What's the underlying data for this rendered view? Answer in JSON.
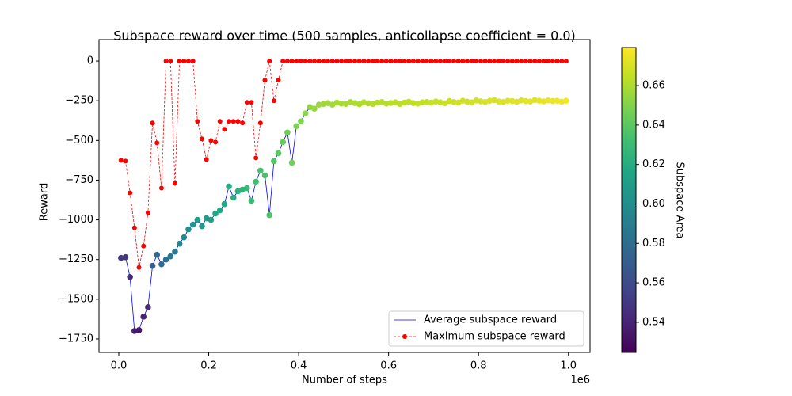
{
  "chart_data": {
    "type": "line",
    "title": "Subspace reward over time (500 samples, anticollapse coefficient = 0.0)",
    "x_label": "Number of steps",
    "x_offset_label": "1e6",
    "y_label": "Reward",
    "xlim": [
      -44000,
      1048000
    ],
    "xticks": [
      {
        "value": 0,
        "label": "0.0"
      },
      {
        "value": 200000,
        "label": "0.2"
      },
      {
        "value": 400000,
        "label": "0.4"
      },
      {
        "value": 600000,
        "label": "0.6"
      },
      {
        "value": 800000,
        "label": "0.8"
      },
      {
        "value": 1000000,
        "label": "1.0"
      }
    ],
    "ylim": [
      -1835,
      135
    ],
    "yticks": [
      0,
      {
        "value": -250,
        "label": "−250"
      },
      {
        "value": -500,
        "label": "−500"
      },
      {
        "value": -750,
        "label": "−750"
      },
      {
        "value": -1000,
        "label": "−1000"
      },
      {
        "value": -1250,
        "label": "−1250"
      },
      {
        "value": -1500,
        "label": "−1500"
      },
      {
        "value": -1750,
        "label": "−1750"
      }
    ],
    "legend": "lower right",
    "x": [
      5000,
      15000,
      25000,
      35000,
      45000,
      55000,
      65000,
      75000,
      85000,
      95000,
      105000,
      115000,
      125000,
      135000,
      145000,
      155000,
      165000,
      175000,
      185000,
      195000,
      205000,
      215000,
      225000,
      235000,
      245000,
      255000,
      265000,
      275000,
      285000,
      295000,
      305000,
      315000,
      325000,
      335000,
      345000,
      355000,
      365000,
      375000,
      385000,
      395000,
      405000,
      415000,
      425000,
      435000,
      445000,
      455000,
      465000,
      475000,
      485000,
      495000,
      505000,
      515000,
      525000,
      535000,
      545000,
      555000,
      565000,
      575000,
      585000,
      595000,
      605000,
      615000,
      625000,
      635000,
      645000,
      655000,
      665000,
      675000,
      685000,
      695000,
      705000,
      715000,
      725000,
      735000,
      745000,
      755000,
      765000,
      775000,
      785000,
      795000,
      805000,
      815000,
      825000,
      835000,
      845000,
      855000,
      865000,
      875000,
      885000,
      895000,
      905000,
      915000,
      925000,
      935000,
      945000,
      955000,
      965000,
      975000,
      985000,
      995000
    ],
    "series": [
      {
        "name": "Average subspace reward",
        "color": "#0000ff",
        "values": [
          -1240,
          -1235,
          -1360,
          -1700,
          -1695,
          -1610,
          -1550,
          -1290,
          -1220,
          -1280,
          -1250,
          -1230,
          -1200,
          -1150,
          -1110,
          -1060,
          -1030,
          -1000,
          -1040,
          -990,
          -1000,
          -960,
          -940,
          -900,
          -790,
          -860,
          -820,
          -810,
          -800,
          -880,
          -760,
          -690,
          -720,
          -970,
          -630,
          -580,
          -510,
          -450,
          -640,
          -410,
          -380,
          -330,
          -290,
          -300,
          -275,
          -270,
          -265,
          -275,
          -262,
          -268,
          -270,
          -258,
          -265,
          -272,
          -260,
          -266,
          -270,
          -262,
          -258,
          -268,
          -264,
          -260,
          -270,
          -262,
          -256,
          -265,
          -268,
          -260,
          -258,
          -262,
          -255,
          -260,
          -266,
          -252,
          -258,
          -262,
          -250,
          -256,
          -260,
          -248,
          -254,
          -258,
          -250,
          -246,
          -255,
          -258,
          -250,
          -252,
          -256,
          -248,
          -252,
          -255,
          -246,
          -250,
          -254,
          -248,
          -252,
          -250,
          -256,
          -250
        ],
        "area": [
          0.55,
          0.55,
          0.545,
          0.537,
          0.535,
          0.54,
          0.545,
          0.57,
          0.578,
          0.58,
          0.582,
          0.585,
          0.59,
          0.595,
          0.598,
          0.6,
          0.605,
          0.61,
          0.607,
          0.61,
          0.612,
          0.615,
          0.615,
          0.618,
          0.62,
          0.62,
          0.622,
          0.625,
          0.627,
          0.628,
          0.632,
          0.634,
          0.635,
          0.636,
          0.638,
          0.64,
          0.642,
          0.645,
          0.646,
          0.648,
          0.65,
          0.652,
          0.654,
          0.655,
          0.656,
          0.657,
          0.657,
          0.658,
          0.658,
          0.659,
          0.659,
          0.66,
          0.66,
          0.66,
          0.661,
          0.661,
          0.661,
          0.662,
          0.662,
          0.662,
          0.663,
          0.663,
          0.663,
          0.664,
          0.664,
          0.664,
          0.665,
          0.665,
          0.665,
          0.666,
          0.666,
          0.666,
          0.667,
          0.667,
          0.667,
          0.668,
          0.668,
          0.668,
          0.669,
          0.669,
          0.669,
          0.67,
          0.67,
          0.67,
          0.671,
          0.671,
          0.671,
          0.672,
          0.672,
          0.672,
          0.673,
          0.673,
          0.673,
          0.674,
          0.674,
          0.675,
          0.675,
          0.676,
          0.676,
          0.677
        ]
      },
      {
        "name": "Maximum subspace reward",
        "color": "#ff0000",
        "linestyle": "dashed",
        "marker": true,
        "values": [
          -625,
          -630,
          -830,
          -1050,
          -1300,
          -1165,
          -955,
          -390,
          -515,
          -800,
          0,
          0,
          -770,
          0,
          0,
          0,
          0,
          -380,
          -490,
          -620,
          -500,
          -510,
          -380,
          -430,
          -380,
          -380,
          -380,
          -390,
          -260,
          -260,
          -610,
          -390,
          -120,
          0,
          -250,
          -120,
          0,
          0,
          0,
          0,
          0,
          0,
          0,
          0,
          0,
          0,
          0,
          0,
          0,
          0,
          0,
          0,
          0,
          0,
          0,
          0,
          0,
          0,
          0,
          0,
          0,
          0,
          0,
          0,
          0,
          0,
          0,
          0,
          0,
          0,
          0,
          0,
          0,
          0,
          0,
          0,
          0,
          0,
          0,
          0,
          0,
          0,
          0,
          0,
          0,
          0,
          0,
          0,
          0,
          0,
          0,
          0,
          0,
          0,
          0,
          0,
          0,
          0,
          0,
          0
        ]
      }
    ],
    "colorbar": {
      "label": "Subspace Area",
      "colormap": "viridis",
      "lim": [
        0.5247,
        0.6793
      ],
      "ticks": [
        0.54,
        0.56,
        0.58,
        {
          "value": 0.6,
          "label": "0.60"
        },
        0.62,
        0.64,
        0.66
      ]
    }
  }
}
